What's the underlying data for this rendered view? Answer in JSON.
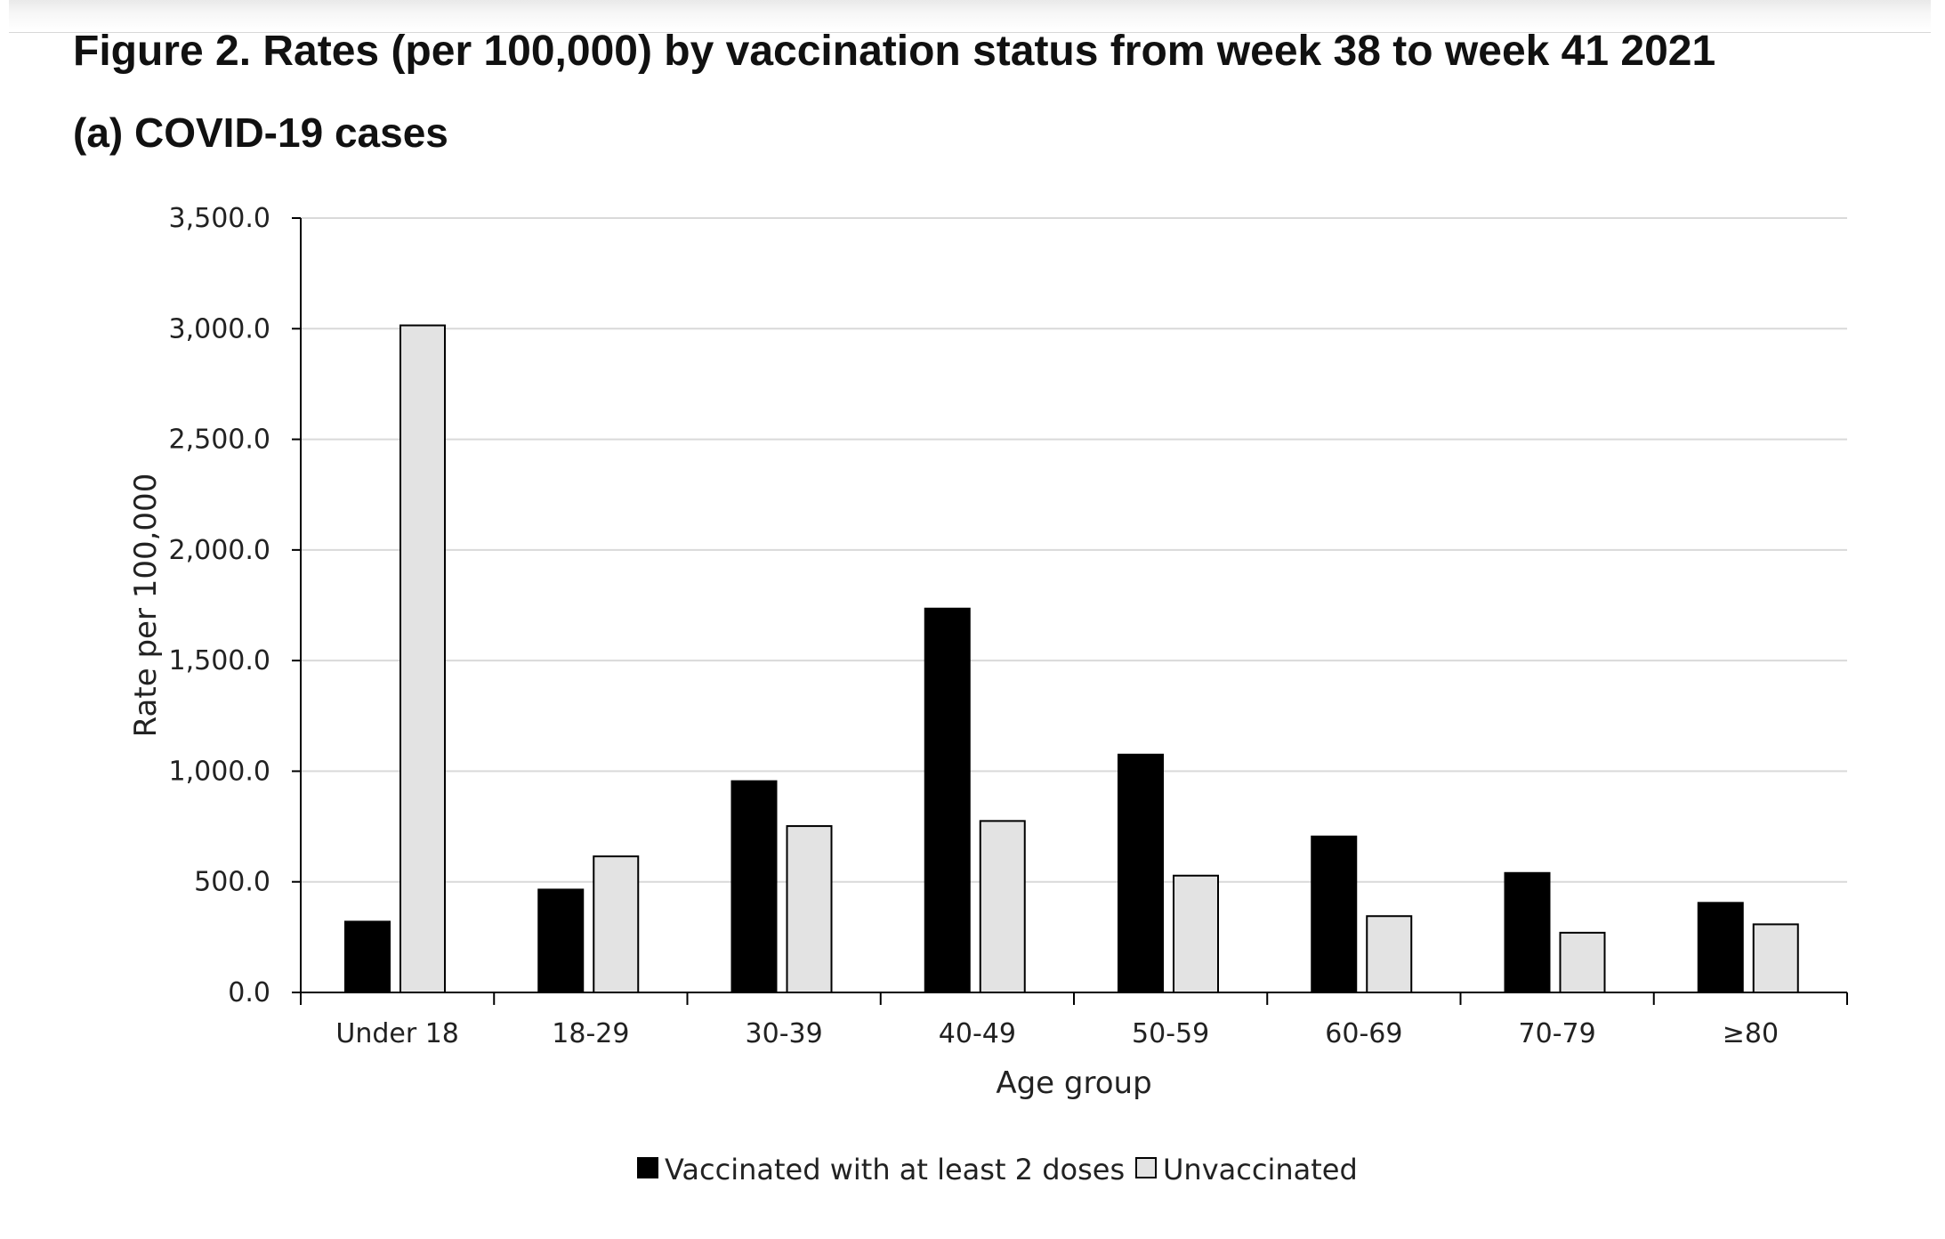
{
  "figure": {
    "title": "Figure 2. Rates (per 100,000) by vaccination status from week 38 to week 41 2021",
    "subtitle": "(a) COVID-19 cases"
  },
  "chart_data": {
    "type": "bar",
    "title": "",
    "xlabel": "Age group",
    "ylabel": "Rate per 100,000",
    "categories": [
      "Under 18",
      "18-29",
      "30-39",
      "40-49",
      "50-59",
      "60-69",
      "70-79",
      "≥80"
    ],
    "series": [
      {
        "name": "Vaccinated with at least 2 doses",
        "color": "#000000",
        "values": [
          320,
          465,
          955,
          1735,
          1075,
          705,
          540,
          405
        ]
      },
      {
        "name": "Unvaccinated",
        "color": "#e3e3e3",
        "values": [
          3015,
          615,
          752,
          775,
          528,
          345,
          270,
          308
        ]
      }
    ],
    "ylim": [
      0,
      3500
    ],
    "yticks": [
      0,
      500,
      1000,
      1500,
      2000,
      2500,
      3000,
      3500
    ],
    "ytick_labels": [
      "0.0",
      "500.0",
      "1,000.0",
      "1,500.0",
      "2,000.0",
      "2,500.0",
      "3,000.0",
      "3,500.0"
    ],
    "grid": true,
    "legend_position": "bottom-center"
  }
}
